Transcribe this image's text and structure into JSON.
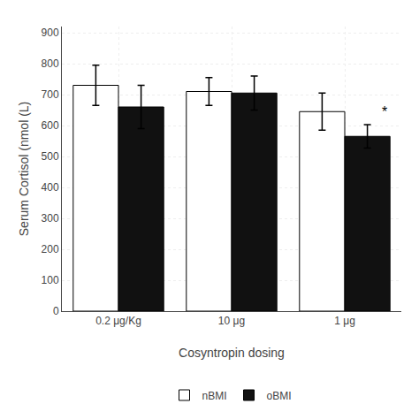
{
  "chart_data": {
    "type": "bar",
    "xlabel": "Cosyntropin dosing",
    "ylabel": "Serum Cortisol (nmol (L)",
    "categories": [
      "0.2 μg/Kg",
      "10 μg",
      "1 μg"
    ],
    "series": [
      {
        "name": "nBMI",
        "color": "#ffffff",
        "values": [
          730,
          710,
          645
        ],
        "errors": [
          65,
          45,
          60
        ]
      },
      {
        "name": "oBMI",
        "color": "#111111",
        "values": [
          660,
          705,
          565
        ],
        "errors": [
          70,
          55,
          38
        ]
      }
    ],
    "ylim": [
      0,
      920
    ],
    "yticks": [
      0,
      100,
      200,
      300,
      400,
      500,
      600,
      700,
      800,
      900
    ],
    "grid": true,
    "legend": "bottom",
    "annotations": [
      {
        "text": "*",
        "x": "1 μg",
        "series": "oBMI"
      }
    ]
  }
}
